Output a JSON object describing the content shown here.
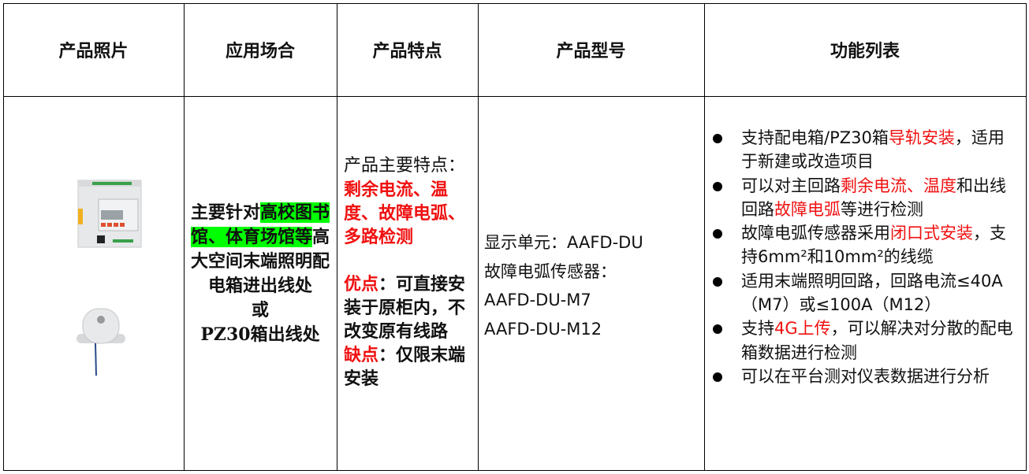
{
  "headers": [
    "产品照片",
    "应用场合",
    "产品特点",
    "产品型号",
    "功能列表"
  ],
  "application": {
    "p1": "主要针对",
    "hl": "高校图书馆、体育场馆等",
    "p2": "高大空间末端照明配电箱进出线处",
    "or": "或",
    "p3": "PZ30箱出线处"
  },
  "features": {
    "title": "产品主要特点：",
    "main": "剩余电流、温度、故障电弧、多路检测",
    "adv_label": "优点",
    "adv": "：可直接安装于原柜内，不改变原有线路",
    "dis_label": "缺点",
    "dis": "：仅限末端安装"
  },
  "models": {
    "l1": "显示单元：AAFD-DU",
    "l2": "故障电弧传感器：",
    "l3": "AAFD-DU-M7",
    "l4": "AAFD-DU-M12"
  },
  "functions": [
    {
      "a": "支持配电箱/PZ30箱",
      "r": "导轨安装",
      "b": "，适用于新建或改造项目"
    },
    {
      "a": "可以对主回路",
      "r": "剩余电流、温度",
      "b": "和出线回路",
      "r2": "故障电弧",
      "c": "等进行检测"
    },
    {
      "a": "故障电弧传感器采用",
      "r": "闭口式安装",
      "b": "，支持6mm²和10mm²的线缆"
    },
    {
      "a": "适用末端照明回路，回路电流≤40A（M7）或≤100A（M12）"
    },
    {
      "a": "支持",
      "r": "4G上传",
      "b": "，可以解决对分散的配电箱数据进行检测"
    },
    {
      "a": "可以在平台测对仪表数据进行分析"
    }
  ],
  "colors": {
    "highlight": "#00ff00",
    "emphasis": "#f01010"
  }
}
